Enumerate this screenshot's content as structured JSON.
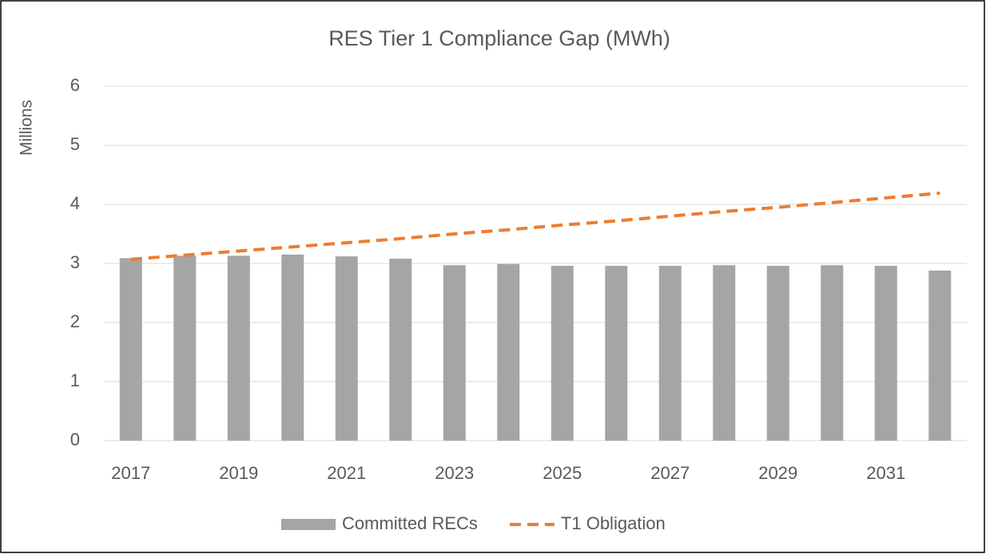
{
  "chart_data": {
    "type": "bar",
    "title": "RES Tier 1 Compliance Gap (MWh)",
    "y_label": "Millions",
    "categories": [
      "2017",
      null,
      "2019",
      null,
      "2021",
      null,
      "2023",
      null,
      "2025",
      null,
      "2027",
      null,
      "2029",
      null,
      "2031",
      null
    ],
    "series": [
      {
        "name": "Committed RECs",
        "type": "bar",
        "color": "#a5a5a5",
        "values": [
          3.09,
          3.13,
          3.13,
          3.15,
          3.12,
          3.08,
          2.97,
          2.99,
          2.96,
          2.96,
          2.96,
          2.97,
          2.96,
          2.97,
          2.96,
          2.88
        ]
      },
      {
        "name": "T1 Obligation",
        "type": "line",
        "dashed": true,
        "color": "#ed7d31",
        "values": [
          3.07,
          3.14,
          3.21,
          3.28,
          3.35,
          3.42,
          3.5,
          3.57,
          3.65,
          3.72,
          3.8,
          3.88,
          3.95,
          4.03,
          4.11,
          4.19
        ]
      }
    ],
    "ylim": [
      0,
      6
    ],
    "yticks": [
      0,
      1,
      2,
      3,
      4,
      5,
      6
    ],
    "grid": true,
    "legend": "bottom"
  }
}
